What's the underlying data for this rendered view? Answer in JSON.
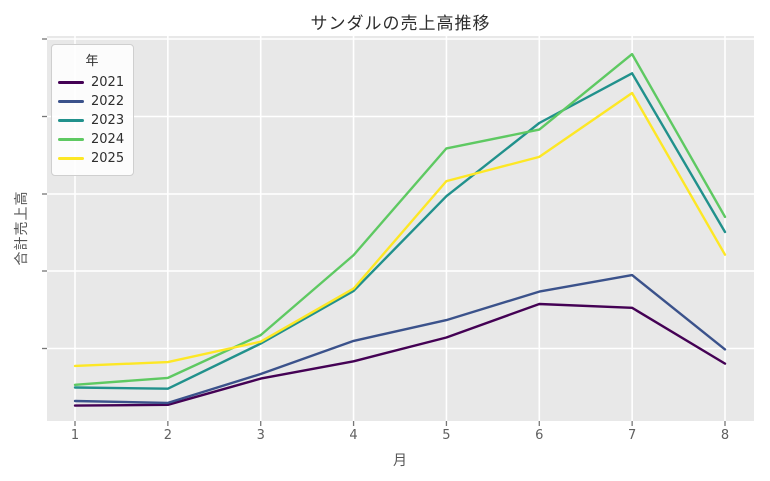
{
  "chart": {
    "title": "サンダルの売上高推移",
    "x_label": "月",
    "y_label": "合計売上高",
    "background_color": "#ffffff",
    "plot_background_color": "#e8e8e8",
    "gridline_color": "#ffffff",
    "tick_color": "#777777",
    "tick_label_color": "#606060"
  },
  "legend": {
    "title": "年",
    "entries": [
      {
        "label": "2021",
        "color": "#440154"
      },
      {
        "label": "2022",
        "color": "#3b528b"
      },
      {
        "label": "2023",
        "color": "#21918c"
      },
      {
        "label": "2024",
        "color": "#5ec962"
      },
      {
        "label": "2025",
        "color": "#fde725"
      }
    ]
  },
  "chart_data": {
    "type": "line",
    "title": "サンダルの売上高推移",
    "xlabel": "月",
    "ylabel": "合計売上高",
    "x": [
      1,
      2,
      3,
      4,
      5,
      6,
      7,
      8
    ],
    "x_tick_labels": [
      "1",
      "2",
      "3",
      "4",
      "5",
      "6",
      "7",
      "8"
    ],
    "y_tick_labels_visible": false,
    "y_units_note": "y axis shows tick marks but no numeric labels; values are percent of plot height estimated from pixels",
    "ylim": [
      0,
      100
    ],
    "grid": true,
    "legend_title": "年",
    "legend_position": "upper left",
    "series": [
      {
        "name": "2021",
        "color": "#440154",
        "values": [
          4.0,
          4.2,
          11.0,
          15.5,
          21.7,
          30.4,
          29.4,
          14.9
        ]
      },
      {
        "name": "2022",
        "color": "#3b528b",
        "values": [
          5.2,
          4.7,
          12.2,
          20.8,
          26.2,
          33.6,
          37.9,
          18.6
        ]
      },
      {
        "name": "2023",
        "color": "#21918c",
        "values": [
          8.7,
          8.4,
          20.1,
          33.8,
          58.4,
          77.4,
          90.3,
          49.1
        ]
      },
      {
        "name": "2024",
        "color": "#5ec962",
        "values": [
          9.4,
          11.2,
          22.3,
          43.1,
          70.8,
          75.7,
          95.3,
          53.0
        ]
      },
      {
        "name": "2025",
        "color": "#fde725",
        "values": [
          14.3,
          15.3,
          20.6,
          34.4,
          62.3,
          68.6,
          85.2,
          43.2
        ]
      }
    ]
  }
}
